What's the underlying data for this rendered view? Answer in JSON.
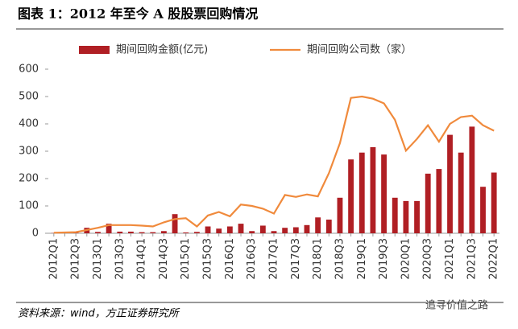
{
  "chart_data": {
    "type": "bar_line",
    "title": "图表 1：2012 年至今 A 股股票回购情况",
    "source": "资料来源：wind，方正证券研究所",
    "watermark": "追寻价值之路",
    "categories": [
      "2012Q1",
      null,
      "2012Q3",
      null,
      "2013Q1",
      null,
      "2013Q3",
      null,
      "2014Q1",
      null,
      "2014Q3",
      null,
      "2015Q1",
      null,
      "2015Q3",
      null,
      "2016Q1",
      null,
      "2016Q3",
      null,
      "2017Q1",
      null,
      "2017Q3",
      null,
      "2018Q1",
      null,
      "2018Q3",
      null,
      "2019Q1",
      null,
      "2019Q3",
      null,
      "2020Q1",
      null,
      "2020Q3",
      null,
      "2021Q1",
      null,
      "2021Q3",
      null,
      "2022Q1"
    ],
    "series": [
      {
        "name": "期间回购金额(亿元)",
        "kind": "bar",
        "color": "#b01f24",
        "values": [
          1,
          1,
          2,
          20,
          5,
          35,
          6,
          6,
          4,
          4,
          8,
          70,
          3,
          5,
          25,
          17,
          25,
          35,
          8,
          28,
          8,
          20,
          22,
          30,
          58,
          50,
          130,
          270,
          295,
          315,
          288,
          130,
          118,
          118,
          218,
          235,
          360,
          295,
          390,
          170,
          222
        ]
      },
      {
        "name": "期间回购公司数（家）",
        "kind": "line",
        "color": "#f08a3c",
        "values": [
          2,
          3,
          4,
          12,
          20,
          30,
          30,
          30,
          28,
          25,
          40,
          52,
          55,
          25,
          65,
          78,
          62,
          105,
          100,
          90,
          72,
          140,
          133,
          142,
          135,
          220,
          330,
          495,
          500,
          492,
          475,
          415,
          302,
          345,
          395,
          335,
          400,
          425,
          430,
          395,
          375
        ]
      }
    ],
    "ylim": [
      0,
      600
    ],
    "yticks": [
      0,
      100,
      200,
      300,
      400,
      500,
      600
    ]
  }
}
